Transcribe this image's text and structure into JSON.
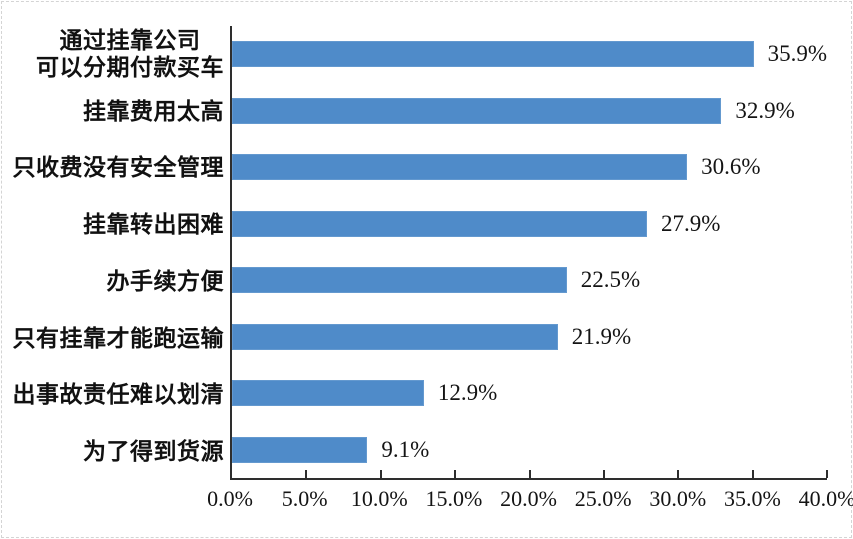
{
  "chart_data": {
    "type": "bar",
    "orientation": "horizontal",
    "title": "",
    "xlabel": "",
    "ylabel": "",
    "categories": [
      "通过挂靠公司\n可以分期付款买车",
      "挂靠费用太高",
      "只收费没有安全管理",
      "挂靠转出困难",
      "办手续方便",
      "只有挂靠才能跑运输",
      "出事故责任难以划清",
      "为了得到货源"
    ],
    "values": [
      35.9,
      32.9,
      30.6,
      27.9,
      22.5,
      21.9,
      12.9,
      9.1
    ],
    "value_labels": [
      "35.9%",
      "32.9%",
      "30.6%",
      "27.9%",
      "22.5%",
      "21.9%",
      "12.9%",
      "9.1%"
    ],
    "xlim": [
      0,
      40
    ],
    "x_tick_step": 5,
    "x_tick_labels": [
      "0.0%",
      "5.0%",
      "10.0%",
      "15.0%",
      "20.0%",
      "25.0%",
      "30.0%",
      "35.0%",
      "40.0%"
    ],
    "grid": false,
    "legend_position": "none",
    "colors": {
      "bar": "#4f8bc9",
      "axis": "#2e2e2e",
      "text": "#141414",
      "category_text": "#111111",
      "background": "#ffffff",
      "frame_border": "#d4d4d4"
    }
  }
}
